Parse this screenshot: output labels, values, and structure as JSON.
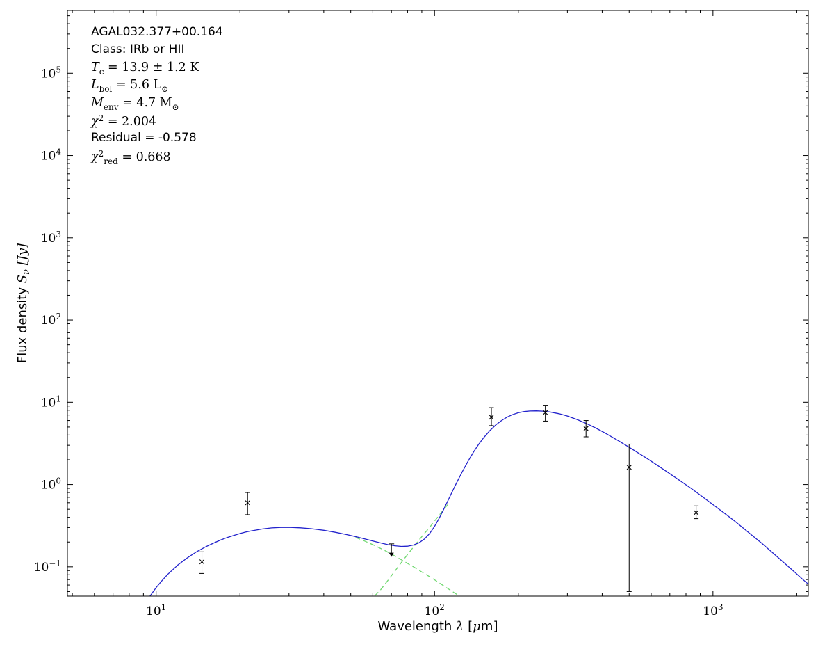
{
  "source_name": "AGAL032.377+00.164",
  "chart_data": {
    "type": "line",
    "title": "",
    "xlabel": "Wavelength λ [μm]",
    "ylabel": "Flux density Sν [Jy]",
    "xscale": "log",
    "yscale": "log",
    "xlim": [
      4.8,
      2200
    ],
    "ylim": [
      0.044,
      580000
    ],
    "xticks_labeled": [
      10,
      100,
      1000
    ],
    "yticks_labeled": [
      0.1,
      1,
      10,
      100,
      1000,
      10000,
      100000
    ],
    "grid": false,
    "legend": "none",
    "colors": {
      "model": "#2222cc",
      "components": "#70d870",
      "data": "#000000"
    },
    "xlabel_segments": [
      {
        "t": "Wavelength ",
        "f": "sans"
      },
      {
        "t": "λ",
        "f": "serif",
        "i": true
      },
      {
        "t": " [",
        "f": "sans"
      },
      {
        "t": "μ",
        "f": "serif",
        "i": true
      },
      {
        "t": "m]",
        "f": "sans"
      }
    ],
    "ylabel_segments": [
      {
        "t": "Flux density ",
        "f": "sans"
      },
      {
        "t": "S",
        "f": "serif",
        "i": true
      },
      {
        "t": "ν",
        "f": "serif",
        "i": true,
        "sub": true
      },
      {
        "t": " [",
        "f": "serif",
        "i": true
      },
      {
        "t": "Jy",
        "f": "serif",
        "i": true
      },
      {
        "t": "]",
        "f": "serif",
        "i": true
      }
    ],
    "annotation": {
      "lines": [
        {
          "text": "AGAL032.377+00.164",
          "segments": [
            {
              "t": "AGAL032.377+00.164",
              "f": "sans"
            }
          ]
        },
        {
          "text": "Class: IRb or HII",
          "segments": [
            {
              "t": "Class: IRb or HII",
              "f": "sans"
            }
          ]
        },
        {
          "text": "Tc = 13.9 ± 1.2 K",
          "segments": [
            {
              "t": "T",
              "f": "serif",
              "i": true
            },
            {
              "t": "c",
              "f": "serif",
              "sub": true
            },
            {
              "t": " = 13.9 ± 1.2 K",
              "f": "serif"
            }
          ]
        },
        {
          "text": "Lbol = 5.6 L⊙",
          "segments": [
            {
              "t": "L",
              "f": "serif",
              "i": true
            },
            {
              "t": "bol",
              "f": "serif",
              "sub": true
            },
            {
              "t": " = 5.6 L",
              "f": "serif"
            },
            {
              "t": "⊙",
              "f": "serif",
              "sub": true
            }
          ]
        },
        {
          "text": "Menv = 4.7 M⊙",
          "segments": [
            {
              "t": "M",
              "f": "serif",
              "i": true
            },
            {
              "t": "env",
              "f": "serif",
              "sub": true
            },
            {
              "t": " = 4.7 M",
              "f": "serif"
            },
            {
              "t": "⊙",
              "f": "serif",
              "sub": true
            }
          ]
        },
        {
          "text": "χ2 = 2.004",
          "segments": [
            {
              "t": "χ",
              "f": "serif",
              "i": true
            },
            {
              "t": "2",
              "f": "serif",
              "sup": true
            },
            {
              "t": " = 2.004",
              "f": "serif"
            }
          ]
        },
        {
          "text": "Residual = -0.578",
          "segments": [
            {
              "t": "Residual = -0.578",
              "f": "sans"
            }
          ]
        },
        {
          "text": "χ2red = 0.668",
          "segments": [
            {
              "t": "χ",
              "f": "serif",
              "i": true
            },
            {
              "t": "2",
              "f": "serif",
              "sup": true
            },
            {
              "t": "red",
              "f": "serif",
              "sub": true
            },
            {
              "t": " = 0.668",
              "f": "serif"
            }
          ]
        }
      ]
    },
    "series": [
      {
        "name": "cold-component",
        "color": "#70d870",
        "style": "dashed",
        "points": [
          [
            61,
            0.0445
          ],
          [
            64,
            0.0525
          ],
          [
            68,
            0.0685
          ],
          [
            72,
            0.0885
          ],
          [
            76,
            0.113
          ],
          [
            80,
            0.141
          ],
          [
            84,
            0.174
          ],
          [
            88,
            0.212
          ],
          [
            92,
            0.255
          ],
          [
            96,
            0.302
          ],
          [
            100,
            0.36
          ],
          [
            104,
            0.425
          ],
          [
            108,
            0.5
          ],
          [
            112,
            0.58
          ]
        ]
      },
      {
        "name": "warm-component",
        "color": "#70d870",
        "style": "dashed",
        "points": [
          [
            52,
            0.228
          ],
          [
            56,
            0.206
          ],
          [
            60,
            0.186
          ],
          [
            65,
            0.163
          ],
          [
            70,
            0.143
          ],
          [
            75,
            0.125
          ],
          [
            80,
            0.11
          ],
          [
            85,
            0.0975
          ],
          [
            90,
            0.0865
          ],
          [
            95,
            0.0775
          ],
          [
            100,
            0.0695
          ],
          [
            106,
            0.061
          ],
          [
            112,
            0.054
          ],
          [
            118,
            0.048
          ],
          [
            124,
            0.0432
          ],
          [
            128,
            0.0405
          ]
        ]
      },
      {
        "name": "model-total",
        "color": "#2222cc",
        "style": "solid",
        "points": [
          [
            9.5,
            0.044
          ],
          [
            10,
            0.056
          ],
          [
            10.5,
            0.068
          ],
          [
            11,
            0.081
          ],
          [
            12,
            0.106
          ],
          [
            13,
            0.13
          ],
          [
            14,
            0.153
          ],
          [
            15,
            0.174
          ],
          [
            16,
            0.193
          ],
          [
            17,
            0.211
          ],
          [
            18,
            0.227
          ],
          [
            19,
            0.241
          ],
          [
            20,
            0.254
          ],
          [
            21,
            0.265
          ],
          [
            22,
            0.274
          ],
          [
            24,
            0.288
          ],
          [
            26,
            0.297
          ],
          [
            28,
            0.301
          ],
          [
            30,
            0.302
          ],
          [
            33,
            0.298
          ],
          [
            36,
            0.291
          ],
          [
            40,
            0.278
          ],
          [
            44,
            0.263
          ],
          [
            48,
            0.248
          ],
          [
            52,
            0.233
          ],
          [
            56,
            0.219
          ],
          [
            60,
            0.206
          ],
          [
            64,
            0.195
          ],
          [
            68,
            0.186
          ],
          [
            72,
            0.18
          ],
          [
            76,
            0.177
          ],
          [
            80,
            0.178
          ],
          [
            84,
            0.184
          ],
          [
            88,
            0.196
          ],
          [
            92,
            0.218
          ],
          [
            96,
            0.254
          ],
          [
            100,
            0.31
          ],
          [
            104,
            0.392
          ],
          [
            108,
            0.504
          ],
          [
            112,
            0.65
          ],
          [
            116,
            0.832
          ],
          [
            120,
            1.05
          ],
          [
            126,
            1.45
          ],
          [
            132,
            1.93
          ],
          [
            138,
            2.48
          ],
          [
            144,
            3.08
          ],
          [
            150,
            3.7
          ],
          [
            158,
            4.52
          ],
          [
            166,
            5.3
          ],
          [
            174,
            6.0
          ],
          [
            182,
            6.58
          ],
          [
            190,
            7.04
          ],
          [
            200,
            7.45
          ],
          [
            210,
            7.7
          ],
          [
            220,
            7.83
          ],
          [
            232,
            7.86
          ],
          [
            245,
            7.8
          ],
          [
            260,
            7.62
          ],
          [
            280,
            7.26
          ],
          [
            300,
            6.8
          ],
          [
            325,
            6.17
          ],
          [
            350,
            5.55
          ],
          [
            380,
            4.85
          ],
          [
            410,
            4.22
          ],
          [
            450,
            3.52
          ],
          [
            490,
            2.96
          ],
          [
            530,
            2.51
          ],
          [
            580,
            2.07
          ],
          [
            630,
            1.72
          ],
          [
            690,
            1.4
          ],
          [
            760,
            1.12
          ],
          [
            840,
            0.885
          ],
          [
            920,
            0.705
          ],
          [
            1000,
            0.57
          ],
          [
            1100,
            0.448
          ],
          [
            1200,
            0.357
          ],
          [
            1350,
            0.258
          ],
          [
            1500,
            0.192
          ],
          [
            1700,
            0.133
          ],
          [
            1900,
            0.0955
          ],
          [
            2100,
            0.0705
          ],
          [
            2200,
            0.0615
          ]
        ]
      }
    ],
    "data_points": [
      {
        "x": 14.6,
        "y": 0.115,
        "ylo": 0.083,
        "yhi": 0.152
      },
      {
        "x": 21.3,
        "y": 0.6,
        "ylo": 0.43,
        "yhi": 0.8
      },
      {
        "x": 70,
        "y": 0.19,
        "upper_limit": true,
        "arrow_to": 0.132
      },
      {
        "x": 160,
        "y": 6.6,
        "ylo": 5.2,
        "yhi": 8.6
      },
      {
        "x": 250,
        "y": 7.5,
        "ylo": 5.9,
        "yhi": 9.2
      },
      {
        "x": 350,
        "y": 4.8,
        "ylo": 3.8,
        "yhi": 6.0
      },
      {
        "x": 500,
        "y": 1.62,
        "ylo": 0.05,
        "yhi": 3.1
      },
      {
        "x": 870,
        "y": 0.455,
        "ylo": 0.385,
        "yhi": 0.55
      }
    ]
  }
}
